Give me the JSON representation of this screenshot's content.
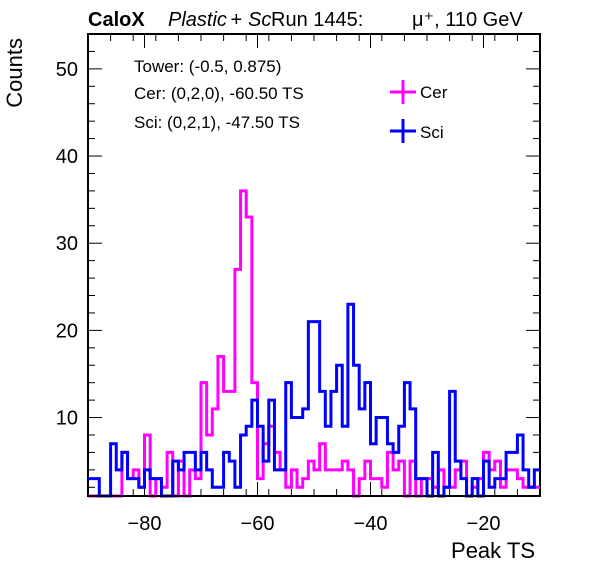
{
  "header": {
    "brand": "CaloX",
    "material_a": "Plastic",
    "plus": " + ",
    "material_b": "Sc",
    "run_info": "Run 1445:",
    "particle": "μ⁺, 110 GeV"
  },
  "annotations": {
    "line1": "Tower: (-0.5, 0.875)",
    "line2": "Cer: (0,2,0), -60.50 TS",
    "line3": "Sci: (0,2,1), -47.50 TS"
  },
  "chart_data": {
    "type": "histogram-step",
    "xlabel": "Peak TS",
    "ylabel": "Counts",
    "xlim": [
      -90,
      -10
    ],
    "ylim": [
      1,
      54
    ],
    "bin_width": 1,
    "x_start": -90,
    "xticks": [
      -80,
      -60,
      -40,
      -20
    ],
    "xtick_labels": [
      "−80",
      "−60",
      "−40",
      "−20"
    ],
    "yticks": [
      10,
      20,
      30,
      40,
      50
    ],
    "ytick_labels": [
      "10",
      "20",
      "30",
      "40",
      "50"
    ],
    "legend_position": "top-right",
    "series": [
      {
        "name": "Cer",
        "color": "#ff00ff",
        "values": [
          1,
          1,
          1,
          1,
          1,
          1,
          6,
          3,
          4,
          2,
          8,
          1,
          3,
          2,
          6,
          1,
          5,
          1,
          4,
          3,
          14,
          8,
          11,
          17,
          13,
          13,
          27,
          36,
          33,
          14,
          3,
          7,
          9,
          6,
          4,
          2,
          4,
          2,
          3,
          5,
          4,
          7,
          4,
          4,
          4,
          5,
          4,
          1,
          3,
          5,
          3,
          3,
          2,
          6,
          4,
          5,
          1,
          5,
          1,
          3,
          3,
          2,
          4,
          2,
          2,
          4,
          5,
          1,
          2,
          3,
          6,
          4,
          5,
          2,
          4,
          4,
          3,
          2,
          2,
          2
        ]
      },
      {
        "name": "Sci",
        "color": "#0000ff",
        "values": [
          3,
          3,
          1,
          1,
          7,
          4,
          6,
          3,
          3,
          2,
          4,
          3,
          3,
          1,
          1,
          5,
          4,
          6,
          6,
          4,
          6,
          4,
          2,
          2,
          6,
          5,
          2,
          8,
          9,
          12,
          9,
          5,
          12,
          4,
          4,
          14,
          10,
          10,
          11,
          21,
          21,
          13,
          9,
          13,
          16,
          9,
          23,
          16,
          11,
          14,
          7,
          10,
          10,
          7,
          6,
          9,
          14,
          11,
          3,
          3,
          1,
          6,
          1,
          2,
          13,
          5,
          3,
          1,
          3,
          1,
          5,
          2,
          3,
          3,
          6,
          6,
          8,
          4,
          2,
          4
        ]
      }
    ]
  }
}
